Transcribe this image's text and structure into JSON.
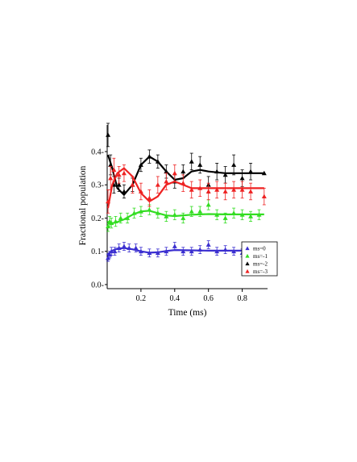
{
  "chart_data": {
    "type": "scatter",
    "xlabel": "Time (ms)",
    "ylabel": "Fractional population",
    "xlim": [
      0,
      0.95
    ],
    "ylim": [
      -0.005,
      0.48
    ],
    "xticks": [
      0.2,
      0.4,
      0.6,
      0.8
    ],
    "xtick_labels": [
      "0.2",
      "0.4",
      "0.6",
      "0.8"
    ],
    "yticks": [
      0.0,
      0.1,
      0.2,
      0.3,
      0.4
    ],
    "ytick_labels": [
      "0.0-",
      "0.1-",
      "0.2-",
      "0.3-",
      "0.4-"
    ],
    "legend_position": "lower-right",
    "series": [
      {
        "name": "ms=0",
        "color": "#3b2fd0",
        "marker": "triangle",
        "points": [
          {
            "x": 0.005,
            "y": 0.08,
            "err": 0.01
          },
          {
            "x": 0.015,
            "y": 0.09,
            "err": 0.01
          },
          {
            "x": 0.025,
            "y": 0.1,
            "err": 0.012
          },
          {
            "x": 0.045,
            "y": 0.1,
            "err": 0.012
          },
          {
            "x": 0.07,
            "y": 0.11,
            "err": 0.012
          },
          {
            "x": 0.1,
            "y": 0.115,
            "err": 0.012
          },
          {
            "x": 0.13,
            "y": 0.11,
            "err": 0.012
          },
          {
            "x": 0.17,
            "y": 0.11,
            "err": 0.012
          },
          {
            "x": 0.2,
            "y": 0.1,
            "err": 0.012
          },
          {
            "x": 0.25,
            "y": 0.095,
            "err": 0.012
          },
          {
            "x": 0.3,
            "y": 0.095,
            "err": 0.012
          },
          {
            "x": 0.35,
            "y": 0.1,
            "err": 0.012
          },
          {
            "x": 0.4,
            "y": 0.115,
            "err": 0.012
          },
          {
            "x": 0.45,
            "y": 0.1,
            "err": 0.012
          },
          {
            "x": 0.5,
            "y": 0.1,
            "err": 0.012
          },
          {
            "x": 0.55,
            "y": 0.105,
            "err": 0.012
          },
          {
            "x": 0.6,
            "y": 0.12,
            "err": 0.012
          },
          {
            "x": 0.65,
            "y": 0.1,
            "err": 0.012
          },
          {
            "x": 0.7,
            "y": 0.105,
            "err": 0.012
          },
          {
            "x": 0.75,
            "y": 0.1,
            "err": 0.012
          },
          {
            "x": 0.8,
            "y": 0.095,
            "err": 0.012
          },
          {
            "x": 0.85,
            "y": 0.1,
            "err": 0.012
          },
          {
            "x": 0.9,
            "y": 0.105,
            "err": 0.012
          }
        ],
        "fit": [
          {
            "x": 0.0,
            "y": 0.09
          },
          {
            "x": 0.03,
            "y": 0.102
          },
          {
            "x": 0.06,
            "y": 0.108
          },
          {
            "x": 0.1,
            "y": 0.11
          },
          {
            "x": 0.15,
            "y": 0.106
          },
          {
            "x": 0.2,
            "y": 0.1
          },
          {
            "x": 0.25,
            "y": 0.096
          },
          {
            "x": 0.3,
            "y": 0.097
          },
          {
            "x": 0.35,
            "y": 0.101
          },
          {
            "x": 0.4,
            "y": 0.104
          },
          {
            "x": 0.5,
            "y": 0.103
          },
          {
            "x": 0.6,
            "y": 0.102
          },
          {
            "x": 0.7,
            "y": 0.102
          },
          {
            "x": 0.8,
            "y": 0.102
          },
          {
            "x": 0.93,
            "y": 0.102
          }
        ]
      },
      {
        "name": "ms=-1",
        "color": "#33dd22",
        "marker": "triangle",
        "points": [
          {
            "x": 0.005,
            "y": 0.175,
            "err": 0.015
          },
          {
            "x": 0.015,
            "y": 0.19,
            "err": 0.015
          },
          {
            "x": 0.025,
            "y": 0.185,
            "err": 0.015
          },
          {
            "x": 0.05,
            "y": 0.19,
            "err": 0.015
          },
          {
            "x": 0.08,
            "y": 0.2,
            "err": 0.015
          },
          {
            "x": 0.12,
            "y": 0.2,
            "err": 0.015
          },
          {
            "x": 0.16,
            "y": 0.215,
            "err": 0.015
          },
          {
            "x": 0.2,
            "y": 0.22,
            "err": 0.015
          },
          {
            "x": 0.25,
            "y": 0.225,
            "err": 0.015
          },
          {
            "x": 0.3,
            "y": 0.215,
            "err": 0.015
          },
          {
            "x": 0.35,
            "y": 0.205,
            "err": 0.015
          },
          {
            "x": 0.4,
            "y": 0.21,
            "err": 0.015
          },
          {
            "x": 0.45,
            "y": 0.2,
            "err": 0.015
          },
          {
            "x": 0.5,
            "y": 0.22,
            "err": 0.015
          },
          {
            "x": 0.55,
            "y": 0.22,
            "err": 0.015
          },
          {
            "x": 0.6,
            "y": 0.24,
            "err": 0.015
          },
          {
            "x": 0.65,
            "y": 0.21,
            "err": 0.015
          },
          {
            "x": 0.7,
            "y": 0.2,
            "err": 0.015
          },
          {
            "x": 0.75,
            "y": 0.215,
            "err": 0.015
          },
          {
            "x": 0.8,
            "y": 0.21,
            "err": 0.015
          },
          {
            "x": 0.85,
            "y": 0.205,
            "err": 0.015
          },
          {
            "x": 0.9,
            "y": 0.21,
            "err": 0.015
          }
        ],
        "fit": [
          {
            "x": 0.0,
            "y": 0.183
          },
          {
            "x": 0.05,
            "y": 0.186
          },
          {
            "x": 0.1,
            "y": 0.196
          },
          {
            "x": 0.15,
            "y": 0.21
          },
          {
            "x": 0.2,
            "y": 0.22
          },
          {
            "x": 0.25,
            "y": 0.222
          },
          {
            "x": 0.3,
            "y": 0.215
          },
          {
            "x": 0.35,
            "y": 0.208
          },
          {
            "x": 0.4,
            "y": 0.206
          },
          {
            "x": 0.5,
            "y": 0.21
          },
          {
            "x": 0.6,
            "y": 0.212
          },
          {
            "x": 0.7,
            "y": 0.211
          },
          {
            "x": 0.8,
            "y": 0.211
          },
          {
            "x": 0.93,
            "y": 0.211
          }
        ]
      },
      {
        "name": "ms=-2",
        "color": "#000000",
        "marker": "triangle",
        "points": [
          {
            "x": 0.005,
            "y": 0.45,
            "err": 0.035
          },
          {
            "x": 0.02,
            "y": 0.36,
            "err": 0.03
          },
          {
            "x": 0.04,
            "y": 0.3,
            "err": 0.025
          },
          {
            "x": 0.07,
            "y": 0.3,
            "err": 0.02
          },
          {
            "x": 0.1,
            "y": 0.28,
            "err": 0.02
          },
          {
            "x": 0.15,
            "y": 0.3,
            "err": 0.02
          },
          {
            "x": 0.2,
            "y": 0.36,
            "err": 0.02
          },
          {
            "x": 0.25,
            "y": 0.385,
            "err": 0.02
          },
          {
            "x": 0.3,
            "y": 0.37,
            "err": 0.02
          },
          {
            "x": 0.35,
            "y": 0.34,
            "err": 0.02
          },
          {
            "x": 0.4,
            "y": 0.31,
            "err": 0.02
          },
          {
            "x": 0.45,
            "y": 0.34,
            "err": 0.02
          },
          {
            "x": 0.5,
            "y": 0.37,
            "err": 0.025
          },
          {
            "x": 0.55,
            "y": 0.36,
            "err": 0.025
          },
          {
            "x": 0.6,
            "y": 0.3,
            "err": 0.025
          },
          {
            "x": 0.65,
            "y": 0.34,
            "err": 0.025
          },
          {
            "x": 0.7,
            "y": 0.33,
            "err": 0.025
          },
          {
            "x": 0.75,
            "y": 0.36,
            "err": 0.03
          },
          {
            "x": 0.8,
            "y": 0.32,
            "err": 0.025
          },
          {
            "x": 0.85,
            "y": 0.34,
            "err": 0.025
          },
          {
            "x": 0.93,
            "y": 0.335,
            "err": 0
          }
        ],
        "fit": [
          {
            "x": 0.005,
            "y": 0.39
          },
          {
            "x": 0.03,
            "y": 0.35
          },
          {
            "x": 0.06,
            "y": 0.29
          },
          {
            "x": 0.1,
            "y": 0.27
          },
          {
            "x": 0.15,
            "y": 0.3
          },
          {
            "x": 0.2,
            "y": 0.36
          },
          {
            "x": 0.25,
            "y": 0.385
          },
          {
            "x": 0.3,
            "y": 0.37
          },
          {
            "x": 0.35,
            "y": 0.34
          },
          {
            "x": 0.4,
            "y": 0.315
          },
          {
            "x": 0.45,
            "y": 0.32
          },
          {
            "x": 0.5,
            "y": 0.34
          },
          {
            "x": 0.55,
            "y": 0.345
          },
          {
            "x": 0.6,
            "y": 0.34
          },
          {
            "x": 0.7,
            "y": 0.335
          },
          {
            "x": 0.8,
            "y": 0.335
          },
          {
            "x": 0.93,
            "y": 0.335
          }
        ]
      },
      {
        "name": "ms=-3",
        "color": "#ee2222",
        "marker": "triangle",
        "points": [
          {
            "x": 0.005,
            "y": 0.25,
            "err": 0.035
          },
          {
            "x": 0.02,
            "y": 0.32,
            "err": 0.035
          },
          {
            "x": 0.04,
            "y": 0.345,
            "err": 0.035
          },
          {
            "x": 0.07,
            "y": 0.33,
            "err": 0.025
          },
          {
            "x": 0.1,
            "y": 0.335,
            "err": 0.025
          },
          {
            "x": 0.15,
            "y": 0.3,
            "err": 0.025
          },
          {
            "x": 0.2,
            "y": 0.28,
            "err": 0.025
          },
          {
            "x": 0.25,
            "y": 0.26,
            "err": 0.025
          },
          {
            "x": 0.3,
            "y": 0.3,
            "err": 0.025
          },
          {
            "x": 0.35,
            "y": 0.31,
            "err": 0.025
          },
          {
            "x": 0.4,
            "y": 0.335,
            "err": 0.025
          },
          {
            "x": 0.45,
            "y": 0.305,
            "err": 0.025
          },
          {
            "x": 0.5,
            "y": 0.285,
            "err": 0.025
          },
          {
            "x": 0.55,
            "y": 0.29,
            "err": 0.025
          },
          {
            "x": 0.6,
            "y": 0.28,
            "err": 0.025
          },
          {
            "x": 0.65,
            "y": 0.285,
            "err": 0.025
          },
          {
            "x": 0.7,
            "y": 0.28,
            "err": 0.025
          },
          {
            "x": 0.75,
            "y": 0.285,
            "err": 0.025
          },
          {
            "x": 0.8,
            "y": 0.285,
            "err": 0.025
          },
          {
            "x": 0.85,
            "y": 0.28,
            "err": 0.025
          },
          {
            "x": 0.93,
            "y": 0.265,
            "err": 0.025
          }
        ],
        "fit": [
          {
            "x": 0.005,
            "y": 0.23
          },
          {
            "x": 0.03,
            "y": 0.3
          },
          {
            "x": 0.06,
            "y": 0.335
          },
          {
            "x": 0.1,
            "y": 0.35
          },
          {
            "x": 0.15,
            "y": 0.325
          },
          {
            "x": 0.2,
            "y": 0.275
          },
          {
            "x": 0.25,
            "y": 0.25
          },
          {
            "x": 0.3,
            "y": 0.265
          },
          {
            "x": 0.35,
            "y": 0.3
          },
          {
            "x": 0.4,
            "y": 0.31
          },
          {
            "x": 0.45,
            "y": 0.3
          },
          {
            "x": 0.5,
            "y": 0.29
          },
          {
            "x": 0.6,
            "y": 0.29
          },
          {
            "x": 0.7,
            "y": 0.29
          },
          {
            "x": 0.8,
            "y": 0.29
          },
          {
            "x": 0.93,
            "y": 0.29
          }
        ]
      }
    ]
  }
}
